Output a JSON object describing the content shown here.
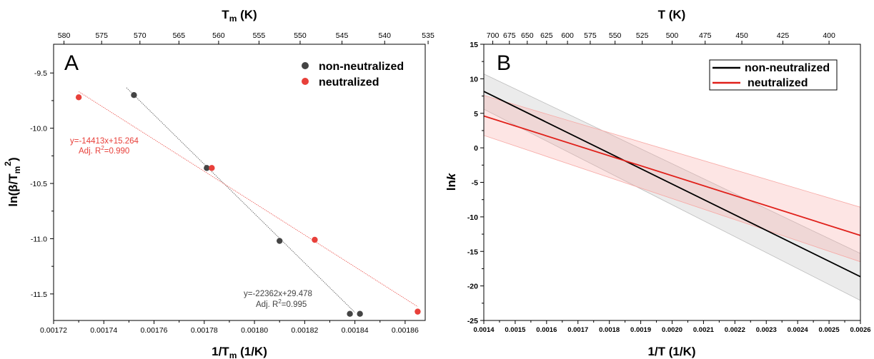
{
  "chart_data": [
    {
      "type": "scatter",
      "panel_label": "A",
      "xlabel": "1/T",
      "xlabel_sub": "m",
      "xlabel_unit": " (1/K)",
      "ylabel": "ln(β/T",
      "ylabel_sub": "m",
      "ylabel_sup": "2",
      "ylabel_close": ")",
      "top_label": "T",
      "top_label_sub": "m",
      "top_label_unit": " (K)",
      "xlim": [
        0.00172,
        0.001868
      ],
      "ylim": [
        -11.74,
        -9.24
      ],
      "x_ticks": [
        "0.00172",
        "0.00174",
        "0.00176",
        "0.00178",
        "0.00180",
        "0.00182",
        "0.00184",
        "0.00186"
      ],
      "y_ticks": [
        "-9.5",
        "-10.0",
        "-10.5",
        "-11.0",
        "-11.5"
      ],
      "top_ticks": [
        "580",
        "575",
        "570",
        "565",
        "560",
        "555",
        "550",
        "545",
        "540",
        "535"
      ],
      "legend_position": "top-right",
      "series": [
        {
          "name": "non-neutralized",
          "color": "#444444",
          "x": [
            0.001752,
            0.001781,
            0.00181,
            0.001838,
            0.001842
          ],
          "y": [
            -9.7,
            -10.36,
            -11.02,
            -11.68,
            -11.68
          ],
          "fit": {
            "x": [
              0.001749,
              0.00184
            ],
            "y": [
              -9.633,
              -11.667
            ]
          },
          "equation": "y=-22362x+29.478",
          "r2_prefix": "Adj. R",
          "r2_sup": "2",
          "r2_value": "=0.995"
        },
        {
          "name": "neutralized",
          "color": "#e8403a",
          "x": [
            0.00173,
            0.001783,
            0.001824,
            0.001865
          ],
          "y": [
            -9.72,
            -10.36,
            -11.01,
            -11.66
          ],
          "fit": {
            "x": [
              0.00173,
              0.001865
            ],
            "y": [
              -9.669,
              -11.615
            ]
          },
          "equation": "y=-14413x+15.264",
          "r2_prefix": "Adj. R",
          "r2_sup": "2",
          "r2_value": "=0.990"
        }
      ]
    },
    {
      "type": "line",
      "panel_label": "B",
      "xlabel": "1/T (1/K)",
      "ylabel": "ln",
      "ylabel_italic": "k",
      "top_label": "T (K)",
      "xlim": [
        0.0014,
        0.0026
      ],
      "ylim": [
        -25,
        15
      ],
      "x_ticks": [
        "0.0014",
        "0.0015",
        "0.0016",
        "0.0017",
        "0.0018",
        "0.0019",
        "0.0020",
        "0.0021",
        "0.0022",
        "0.0023",
        "0.0024",
        "0.0025",
        "0.0026"
      ],
      "y_ticks": [
        "15",
        "10",
        "5",
        "0",
        "-5",
        "-10",
        "-15",
        "-20",
        "-25"
      ],
      "top_ticks": [
        "700",
        "675",
        "650",
        "625",
        "600",
        "575",
        "550",
        "525",
        "500",
        "475",
        "450",
        "425",
        "400"
      ],
      "legend_position": "top-right",
      "series": [
        {
          "name": "non-neutralized",
          "color": "#000000",
          "band_color": "#bdbdbd",
          "x": [
            0.0014,
            0.0026
          ],
          "y": [
            8.17,
            -18.66
          ],
          "upper": [
            10.7,
            -15.3
          ],
          "lower": [
            5.6,
            -22.1
          ]
        },
        {
          "name": "neutralized",
          "color": "#e0201a",
          "band_color": "#f7a8a4",
          "x": [
            0.0014,
            0.0026
          ],
          "y": [
            4.61,
            -12.69
          ],
          "upper": [
            7.6,
            -8.6
          ],
          "lower": [
            1.8,
            -16.5
          ]
        }
      ]
    }
  ]
}
